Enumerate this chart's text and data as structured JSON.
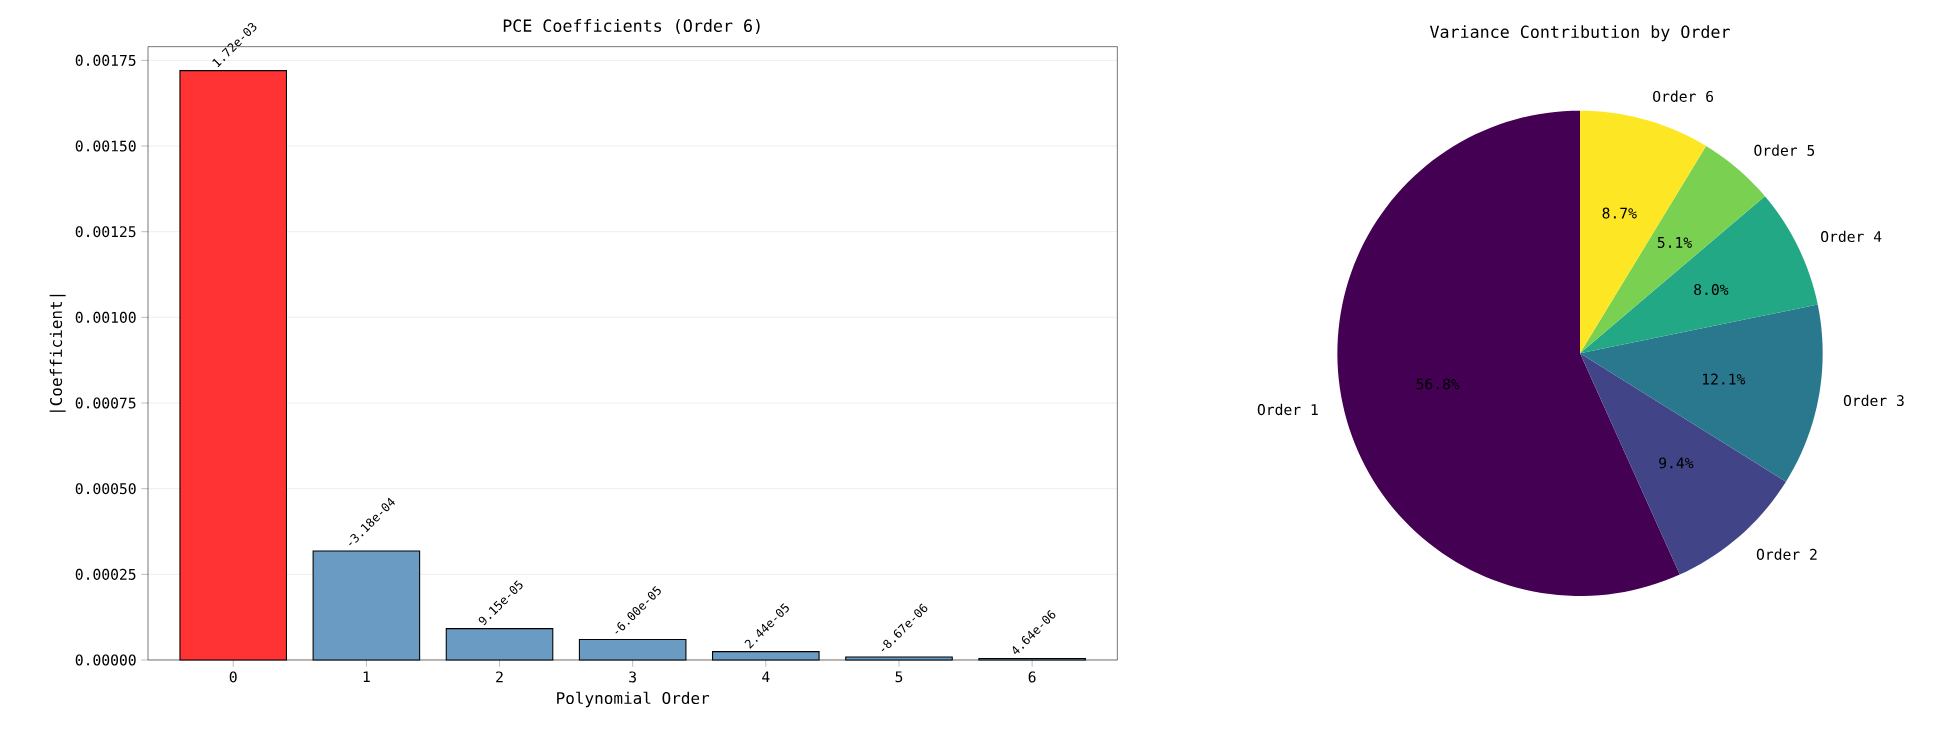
{
  "chart_data": [
    {
      "type": "bar",
      "title": "PCE Coefficients (Order 6)",
      "xlabel": "Polynomial Order",
      "ylabel": "|Coefficient|",
      "categories": [
        "0",
        "1",
        "2",
        "3",
        "4",
        "5",
        "6"
      ],
      "values": [
        0.00172,
        0.000318,
        9.15e-05,
        6e-05,
        2.44e-05,
        8.67e-06,
        4.64e-06
      ],
      "colors": [
        "#ff3333",
        "#6a9bc3",
        "#6a9bc3",
        "#6a9bc3",
        "#6a9bc3",
        "#6a9bc3",
        "#6a9bc3"
      ],
      "annotations": [
        {
          "text": "1.72e-03",
          "x": "0",
          "y": 0.00172
        },
        {
          "text": "-3.18e-04",
          "x": "1",
          "y": 0.000318
        },
        {
          "text": "9.15e-05",
          "x": "2",
          "y": 9.15e-05
        },
        {
          "text": "-6.00e-05",
          "x": "3",
          "y": 6e-05
        },
        {
          "text": "2.44e-05",
          "x": "4",
          "y": 2.44e-05
        },
        {
          "text": "-8.67e-06",
          "x": "5",
          "y": 8.67e-06
        },
        {
          "text": "4.64e-06",
          "x": "6",
          "y": 4.64e-06
        }
      ],
      "ylim": [
        0,
        0.00179
      ],
      "yticks": [
        {
          "value": 0,
          "label": "0.00000"
        },
        {
          "value": 0.00025,
          "label": "0.00025"
        },
        {
          "value": 0.0005,
          "label": "0.00050"
        },
        {
          "value": 0.00075,
          "label": "0.00075"
        },
        {
          "value": 0.001,
          "label": "0.00100"
        },
        {
          "value": 0.00125,
          "label": "0.00125"
        },
        {
          "value": 0.0015,
          "label": "0.00150"
        },
        {
          "value": 0.00175,
          "label": "0.00175"
        }
      ],
      "grid": "y"
    },
    {
      "type": "pie",
      "title": "Variance Contribution by Order",
      "categories": [
        "Order 1",
        "Order 2",
        "Order 3",
        "Order 4",
        "Order 5",
        "Order 6"
      ],
      "values": [
        56.8,
        9.4,
        12.1,
        8.0,
        5.1,
        8.7
      ],
      "colors": [
        "#440154",
        "#414487",
        "#2a788e",
        "#22a884",
        "#7ad151",
        "#fde725"
      ],
      "value_labels": [
        "56.8%",
        "9.4%",
        "12.1%",
        "8.0%",
        "5.1%",
        "8.7%"
      ]
    }
  ]
}
